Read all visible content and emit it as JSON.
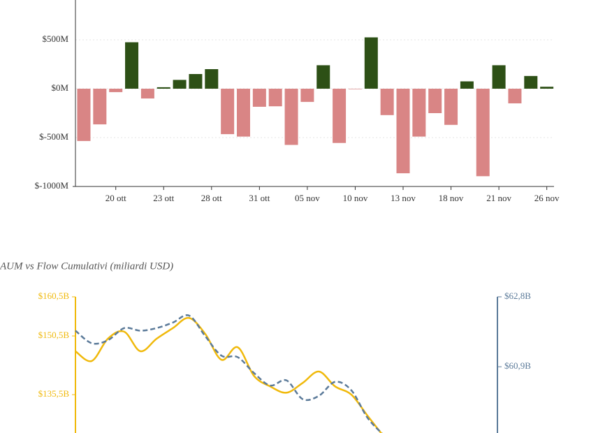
{
  "charts": [
    {
      "chart_data": {
        "type": "bar",
        "categories": [
          null,
          null,
          "20 ott",
          null,
          null,
          "23 ott",
          null,
          null,
          "28 ott",
          null,
          null,
          "31 ott",
          null,
          null,
          "05 nov",
          null,
          null,
          "10 nov",
          null,
          null,
          "13 nov",
          null,
          null,
          "18 nov",
          null,
          null,
          "21 nov",
          null,
          null,
          "26 nov"
        ],
        "values": [
          -535,
          -365,
          -35,
          475,
          -100,
          15,
          90,
          150,
          200,
          -465,
          -490,
          -185,
          -180,
          -575,
          -135,
          240,
          -555,
          -5,
          525,
          -270,
          -865,
          -490,
          -250,
          -370,
          75,
          -895,
          240,
          -150,
          130,
          20
        ],
        "positive_color": "#2d5016",
        "negative_color": "#d98585",
        "ylim": [
          -1000,
          900
        ],
        "yticks": [
          {
            "value": 500,
            "label": "$500M"
          },
          {
            "value": 0,
            "label": "$0M"
          },
          {
            "value": -500,
            "label": "$-500M"
          },
          {
            "value": -1000,
            "label": "$-1000M"
          }
        ],
        "grid": true
      }
    },
    {
      "chart_data": {
        "type": "line",
        "title": "AUM vs Flow Cumulativi (miliardi USD)",
        "categories": [
          null,
          null,
          null,
          null,
          null,
          null,
          null,
          null,
          null,
          null,
          null,
          null,
          null,
          null,
          null,
          null,
          null,
          null,
          null,
          null,
          null,
          null,
          null,
          null,
          null,
          null,
          null
        ],
        "series": [
          {
            "color": "#f0b90b",
            "dashed": false,
            "values": [
              146.6,
              144.1,
              149.8,
              151.6,
              146.6,
              149.8,
              152.5,
              155.1,
              151.0,
              144.4,
              147.6,
              140.3,
              137.6,
              136.0,
              138.5,
              141.4,
              137.6,
              135.5,
              130.1,
              124.8,
              null,
              null,
              null,
              null,
              null,
              null,
              null
            ]
          },
          {
            "color": "#5b7a99",
            "dashed": true,
            "axis": "y2",
            "values": [
              61.88,
              61.54,
              61.62,
              61.95,
              61.88,
              61.95,
              62.1,
              62.29,
              61.73,
              61.2,
              61.16,
              60.73,
              60.39,
              60.53,
              60.02,
              60.11,
              60.49,
              60.26,
              59.51,
              59.04,
              null,
              null,
              null,
              null,
              null,
              null,
              null
            ]
          }
        ],
        "ylim": [
          125.7,
          160.5
        ],
        "yticks": [
          {
            "value": 160.5,
            "label": "$160,5B"
          },
          {
            "value": 150.5,
            "label": "$150,5B"
          },
          {
            "value": 135.5,
            "label": "$135,5B"
          }
        ],
        "y2lim": [
          59.1,
          62.8
        ],
        "y2ticks": [
          {
            "value": 62.8,
            "label": "$62,8B"
          },
          {
            "value": 60.9,
            "label": "$60,9B"
          }
        ]
      }
    }
  ]
}
